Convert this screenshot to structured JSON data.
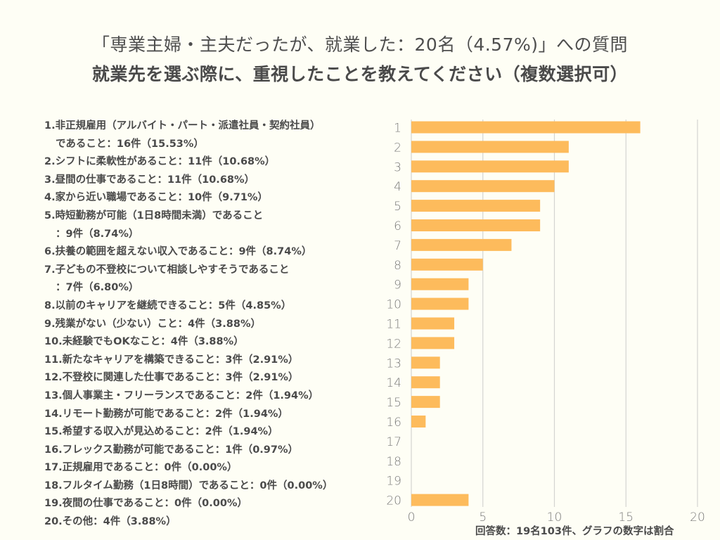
{
  "header": {
    "title_line1": "「専業主婦・主夫だったが、就業した：20名（4.57%)」への質問",
    "title_line2": "就業先を選ぶ際に、重視したことを教えてください（複数選択可）"
  },
  "legend": [
    {
      "line1": "1.非正規雇用（アルバイト・パート・派遣社員・契約社員）",
      "line2": "であること：16件（15.53%）"
    },
    {
      "line1": "2.シフトに柔軟性があること：11件（10.68%）"
    },
    {
      "line1": "3.昼間の仕事であること：11件（10.68%）"
    },
    {
      "line1": "4.家から近い職場であること：10件（9.71%）"
    },
    {
      "line1": "5.時短勤務が可能（1日8時間未満）であること",
      "line2": "：9件（8.74%）"
    },
    {
      "line1": "6.扶養の範囲を超えない収入であること：9件（8.74%）"
    },
    {
      "line1": "7.子どもの不登校について相談しやすそうであること",
      "line2": "：7件（6.80%）"
    },
    {
      "line1": "8.以前のキャリアを継続できること：5件（4.85%）"
    },
    {
      "line1": "9.残業がない（少ない）こと：4件（3.88%）"
    },
    {
      "line1": "10.未経験でもOKなこと：4件（3.88%）"
    },
    {
      "line1": "11.新たなキャリアを構築できること：3件（2.91%）"
    },
    {
      "line1": "12.不登校に関連した仕事であること：3件（2.91%）"
    },
    {
      "line1": "13.個人事業主・フリーランスであること：2件（1.94%）"
    },
    {
      "line1": "14.リモート勤務が可能であること：2件（1.94%）"
    },
    {
      "line1": "15.希望する収入が見込めること：2件（1.94%）"
    },
    {
      "line1": "16.フレックス勤務が可能であること：1件（0.97%）"
    },
    {
      "line1": "17.正規雇用であること：0件（0.00%）"
    },
    {
      "line1": "18.フルタイム勤務（1日8時間）であること：0件（0.00%）"
    },
    {
      "line1": "19.夜間の仕事であること：0件（0.00%）"
    },
    {
      "line1": "20.その他：4件（3.88%）"
    }
  ],
  "footer": {
    "note": "回答数：19名103件、グラフの数字は割合"
  },
  "colors": {
    "bar": "#fdbb5c",
    "grid": "#d4d4d0",
    "background": "#fefef5"
  },
  "chart_data": {
    "type": "bar",
    "orientation": "horizontal",
    "title": "就業先を選ぶ際に、重視したことを教えてください（複数選択可）",
    "xlabel": "",
    "ylabel": "",
    "categories": [
      "1",
      "2",
      "3",
      "4",
      "5",
      "6",
      "7",
      "8",
      "9",
      "10",
      "11",
      "12",
      "13",
      "14",
      "15",
      "16",
      "17",
      "18",
      "19",
      "20"
    ],
    "values": [
      16,
      11,
      11,
      10,
      9,
      9,
      7,
      5,
      4,
      4,
      3,
      3,
      2,
      2,
      2,
      1,
      0,
      0,
      0,
      4
    ],
    "xlim": [
      0,
      20
    ],
    "xticks": [
      0,
      5,
      10,
      15,
      20
    ],
    "grid": true,
    "legend_position": "left"
  }
}
